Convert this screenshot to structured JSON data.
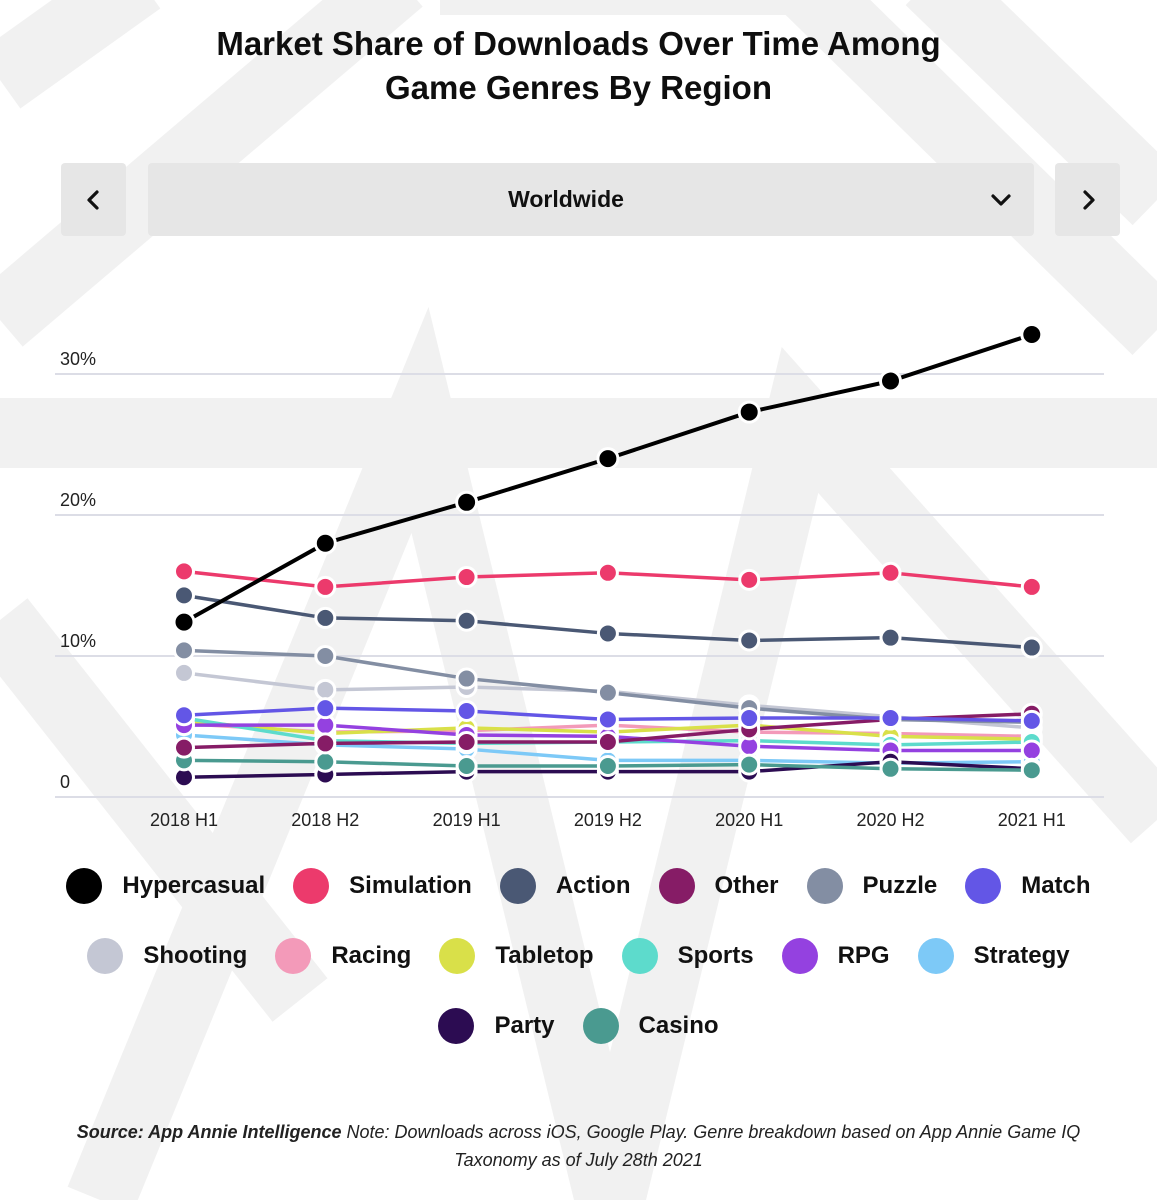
{
  "chart_data": {
    "type": "line",
    "title": "Market Share of Downloads Over Time Among Game Genres By Region",
    "title_lines": [
      "Market Share of Downloads Over Time Among",
      "Game Genres By Region"
    ],
    "categories": [
      "2018 H1",
      "2018 H2",
      "2019 H1",
      "2019 H2",
      "2020 H1",
      "2020 H2",
      "2021 H1"
    ],
    "ylim": [
      0,
      35
    ],
    "yticks": [
      {
        "value": 0,
        "label": "0"
      },
      {
        "value": 10,
        "label": "10%"
      },
      {
        "value": 20,
        "label": "20%"
      },
      {
        "value": 30,
        "label": "30%"
      }
    ],
    "grid": true,
    "legend_position": "bottom",
    "series": [
      {
        "name": "Strategy",
        "color": "#7dc9f7",
        "values": [
          4.4,
          3.7,
          3.4,
          2.6,
          2.6,
          2.4,
          2.5
        ]
      },
      {
        "name": "Shooting",
        "color": "#c4c7d4",
        "values": [
          8.8,
          7.6,
          7.8,
          7.5,
          6.5,
          5.7,
          4.9
        ]
      },
      {
        "name": "Racing",
        "color": "#f39ab9",
        "values": [
          5.2,
          4.6,
          4.7,
          5.1,
          4.6,
          4.5,
          4.3
        ]
      },
      {
        "name": "Tabletop",
        "color": "#d9e049",
        "values": [
          5.4,
          4.5,
          4.9,
          4.6,
          5.1,
          4.3,
          4.1
        ]
      },
      {
        "name": "Sports",
        "color": "#5ddbcc",
        "values": [
          5.6,
          4.0,
          3.8,
          3.9,
          4.0,
          3.7,
          3.9
        ]
      },
      {
        "name": "RPG",
        "color": "#9441e0",
        "values": [
          5.1,
          5.1,
          4.4,
          4.3,
          3.6,
          3.3,
          3.3
        ]
      },
      {
        "name": "Party",
        "color": "#2c0c52",
        "values": [
          1.4,
          1.6,
          1.8,
          1.8,
          1.8,
          2.5,
          2.0
        ]
      },
      {
        "name": "Casino",
        "color": "#4a9a90",
        "values": [
          2.6,
          2.5,
          2.2,
          2.2,
          2.3,
          2.0,
          1.9
        ]
      },
      {
        "name": "Other",
        "color": "#861c66",
        "values": [
          3.5,
          3.8,
          3.9,
          3.9,
          4.8,
          5.5,
          5.9
        ]
      },
      {
        "name": "Puzzle",
        "color": "#838ea3",
        "values": [
          10.4,
          10.0,
          8.4,
          7.4,
          6.3,
          5.5,
          5.3
        ]
      },
      {
        "name": "Match",
        "color": "#6356e6",
        "values": [
          5.8,
          6.3,
          6.1,
          5.5,
          5.6,
          5.6,
          5.4
        ]
      },
      {
        "name": "Action",
        "color": "#4a5874",
        "values": [
          14.3,
          12.7,
          12.5,
          11.6,
          11.1,
          11.3,
          10.6
        ]
      },
      {
        "name": "Simulation",
        "color": "#ec3a6c",
        "values": [
          16.0,
          14.9,
          15.6,
          15.9,
          15.4,
          15.9,
          14.9
        ]
      },
      {
        "name": "Hypercasual",
        "color": "#000000",
        "values": [
          12.4,
          18.0,
          20.9,
          24.0,
          27.3,
          29.5,
          32.8
        ]
      }
    ],
    "legend_order": [
      "Hypercasual",
      "Simulation",
      "Action",
      "Other",
      "Puzzle",
      "Match",
      "Shooting",
      "Racing",
      "Tabletop",
      "Sports",
      "RPG",
      "Strategy",
      "Party",
      "Casino"
    ]
  },
  "region_selector": {
    "selected": "Worldwide",
    "prev_icon": "chevron-left-icon",
    "next_icon": "chevron-right-icon",
    "dropdown_icon": "chevron-down-icon"
  },
  "footnote": {
    "source": "Source: App Annie Intelligence",
    "note": " Note: Downloads across iOS, Google Play. Genre breakdown based on App Annie Game IQ Taxonomy as of July 28th 2021"
  },
  "colors": {
    "grid": "#dcdde6",
    "button_bg": "#e6e6e6",
    "watermark": "#f2f2f2"
  }
}
